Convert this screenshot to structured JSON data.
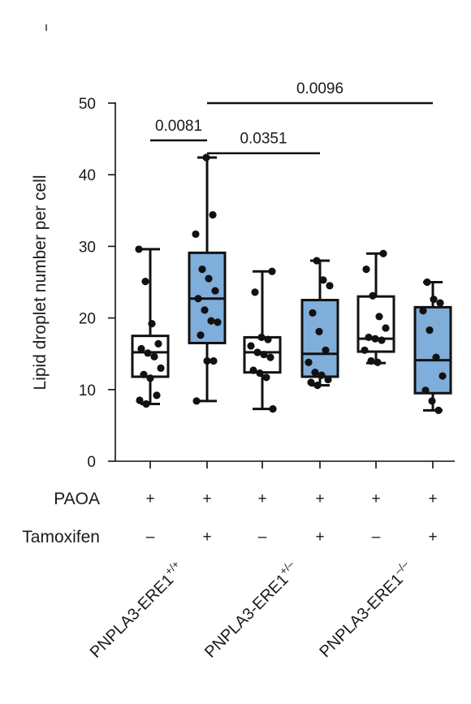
{
  "chart_data": {
    "type": "box",
    "ylabel": "Lipid droplet number per cell",
    "ylim": [
      0,
      50
    ],
    "yticks": [
      0,
      10,
      20,
      30,
      40,
      50
    ],
    "colors": {
      "untreated": "#ffffff",
      "tamoxifen": "#7faedb",
      "stroke": "#111111"
    },
    "boxes": [
      {
        "group": 0,
        "tamoxifen": false,
        "whisker_low": 8,
        "q1": 11.8,
        "median": 15.2,
        "q3": 17.5,
        "whisker_high": 29.6,
        "points": [
          29.6,
          25.1,
          19.2,
          16.4,
          15.7,
          15.1,
          14.6,
          13.0,
          12.1,
          11.6,
          9.2,
          8.5,
          8.0
        ]
      },
      {
        "group": 0,
        "tamoxifen": true,
        "whisker_low": 8.4,
        "q1": 16.5,
        "median": 22.7,
        "q3": 29.1,
        "whisker_high": 42.4,
        "points": [
          42.4,
          34.4,
          31.7,
          26.8,
          25.5,
          23.8,
          22.7,
          21.1,
          19.6,
          19.4,
          17.6,
          14.0,
          14.0,
          8.4
        ]
      },
      {
        "group": 1,
        "tamoxifen": false,
        "whisker_low": 7.3,
        "q1": 12.4,
        "median": 15.2,
        "q3": 17.3,
        "whisker_high": 26.5,
        "points": [
          26.5,
          23.6,
          17.3,
          17.0,
          16.1,
          15.2,
          14.9,
          14.5,
          12.7,
          12.3,
          11.7,
          7.3
        ]
      },
      {
        "group": 1,
        "tamoxifen": true,
        "whisker_low": 10.6,
        "q1": 11.8,
        "median": 15.0,
        "q3": 22.5,
        "whisker_high": 28.0,
        "points": [
          28.0,
          25.3,
          24.5,
          20.7,
          18.1,
          15.5,
          13.8,
          12.4,
          12.0,
          11.4,
          11.0,
          10.6
        ]
      },
      {
        "group": 2,
        "tamoxifen": false,
        "whisker_low": 13.7,
        "q1": 15.3,
        "median": 17.1,
        "q3": 23.0,
        "whisker_high": 29.0,
        "points": [
          29.0,
          26.8,
          23.1,
          20.2,
          18.6,
          17.3,
          17.1,
          16.9,
          15.5,
          14.0,
          13.8
        ]
      },
      {
        "group": 2,
        "tamoxifen": true,
        "whisker_low": 7.1,
        "q1": 9.5,
        "median": 14.1,
        "q3": 21.5,
        "whisker_high": 25.0,
        "points": [
          25.0,
          22.6,
          22.1,
          21.0,
          18.3,
          14.5,
          11.9,
          9.9,
          8.4,
          7.1
        ]
      }
    ],
    "significance": [
      {
        "from": 0,
        "to": 1,
        "y": 44.8,
        "label": "0.0081"
      },
      {
        "from": 1,
        "to": 3,
        "y": 43.0,
        "label": "0.0351"
      },
      {
        "from": 1,
        "to": 5,
        "y": 50.0,
        "label": "0.0096"
      }
    ],
    "rows": [
      {
        "label": "PAOA",
        "signs": [
          "+",
          "+",
          "+",
          "+",
          "+",
          "+"
        ]
      },
      {
        "label": "Tamoxifen",
        "signs": [
          "–",
          "+",
          "–",
          "+",
          "–",
          "+"
        ]
      }
    ],
    "groups": [
      {
        "name": "PNPLA3-ERE1",
        "sup": "+/+"
      },
      {
        "name": "PNPLA3-ERE1",
        "sup": "+/–"
      },
      {
        "name": "PNPLA3-ERE1",
        "sup": "–/–"
      }
    ]
  }
}
